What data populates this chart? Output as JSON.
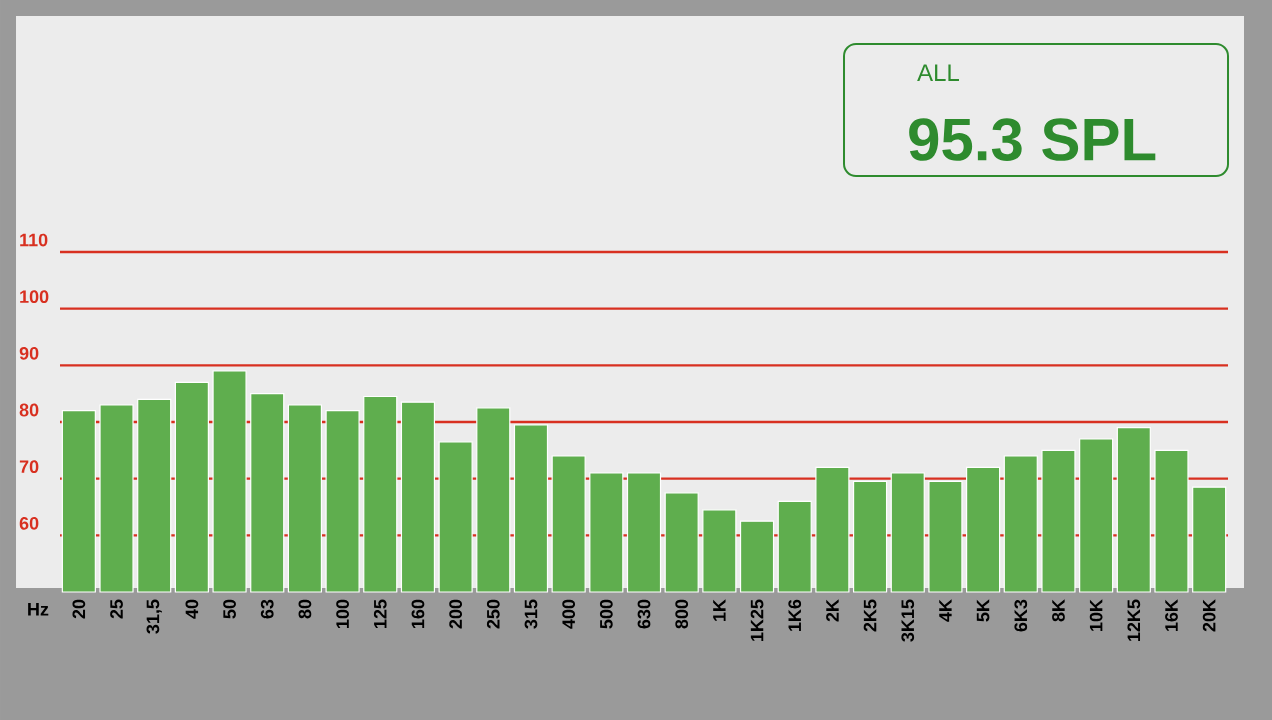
{
  "chart_data": {
    "type": "bar",
    "xlabel": "Hz",
    "categories": [
      "20",
      "25",
      "31,5",
      "40",
      "50",
      "63",
      "80",
      "100",
      "125",
      "160",
      "200",
      "250",
      "315",
      "400",
      "500",
      "630",
      "800",
      "1K",
      "1K25",
      "1K6",
      "2K",
      "2K5",
      "3K15",
      "4K",
      "5K",
      "6K3",
      "8K",
      "10K",
      "12K5",
      "16K",
      "20K"
    ],
    "values": [
      82,
      83,
      84,
      87,
      89,
      85,
      83,
      82,
      84.5,
      83.5,
      76.5,
      82.5,
      79.5,
      74,
      71,
      71,
      67.5,
      64.5,
      62.5,
      66,
      72,
      69.5,
      71,
      69.5,
      72,
      74,
      75,
      77,
      79,
      75,
      68.5
    ],
    "color": "#5fae4e",
    "ylim": [
      50,
      110
    ],
    "yticks": [
      60,
      70,
      80,
      90,
      100,
      110
    ],
    "grid": "y",
    "annotations": [
      "ALL",
      "95.3 SPL"
    ]
  }
}
